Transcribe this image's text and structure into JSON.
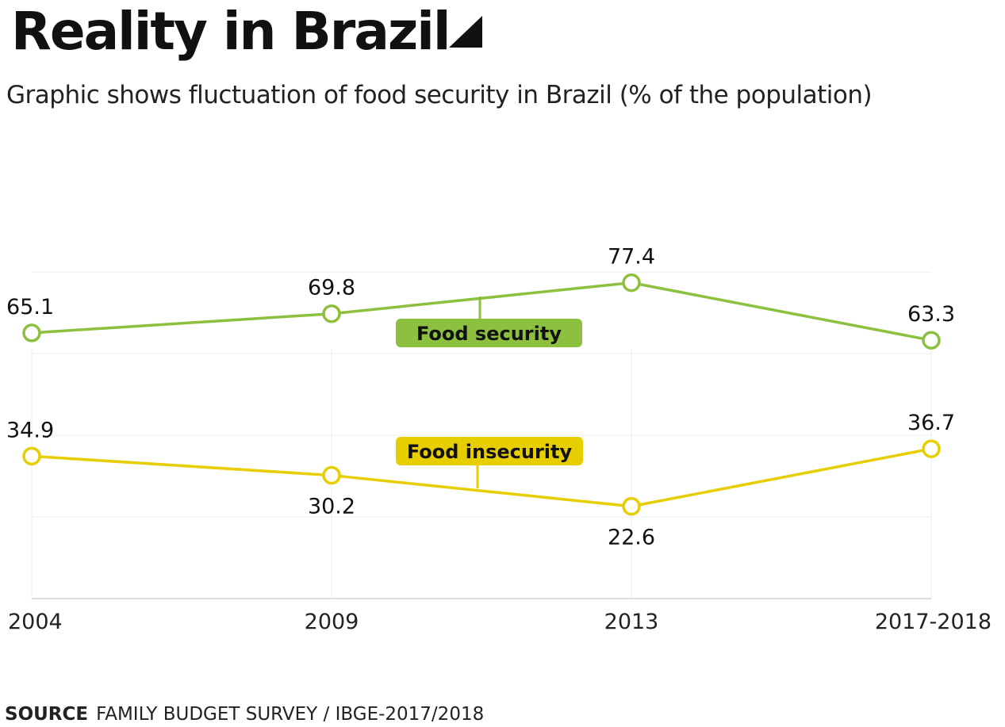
{
  "header": {
    "title": "Reality in Brazil",
    "subtitle": "Graphic shows fluctuation of food security in Brazil (% of the population)"
  },
  "source": {
    "label": "SOURCE",
    "text": "FAMILY BUDGET SURVEY / IBGE-2017/2018"
  },
  "chart_data": {
    "type": "line",
    "x": [
      "2004",
      "2009",
      "2013",
      "2017-2018"
    ],
    "ylim": [
      0,
      100
    ],
    "grid": true,
    "series": [
      {
        "name": "Food security",
        "values": [
          65.1,
          69.8,
          77.4,
          63.3
        ],
        "color": "#8dc03f",
        "value_labels": [
          "65.1",
          "69.8",
          "77.4",
          "63.3"
        ]
      },
      {
        "name": "Food insecurity",
        "values": [
          34.9,
          30.2,
          22.6,
          36.7
        ],
        "color": "#e6ce00",
        "value_labels": [
          "34.9",
          "30.2",
          "22.6",
          "36.7"
        ]
      }
    ]
  }
}
